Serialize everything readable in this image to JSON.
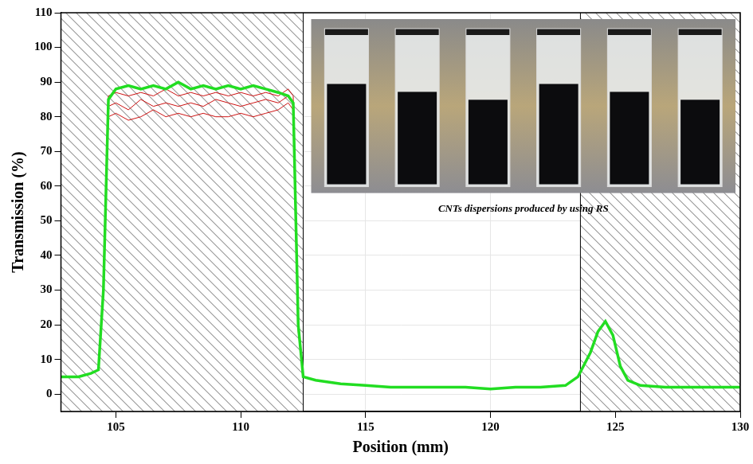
{
  "chart_data": {
    "type": "line",
    "x_label": "Position (mm)",
    "y_label": "Transmission (%)",
    "inset_caption": "CNTs dispersions produced by using RS",
    "x": [
      102.8,
      103.5,
      104.0,
      104.3,
      104.5,
      104.7,
      105,
      105.5,
      106,
      106.5,
      107,
      107.5,
      108,
      108.5,
      109,
      109.5,
      110,
      110.5,
      111,
      111.5,
      111.9,
      112.1,
      112.3,
      112.5,
      113,
      114,
      115,
      116,
      117,
      118,
      119,
      120,
      121,
      122,
      123,
      123.5,
      124,
      124.3,
      124.6,
      124.9,
      125.2,
      125.5,
      126,
      127,
      128,
      129,
      130
    ],
    "series": [
      {
        "color": "#22dd22",
        "values": [
          5,
          5,
          6,
          7,
          30,
          85,
          88,
          89,
          88,
          89,
          88,
          90,
          88,
          89,
          88,
          89,
          88,
          89,
          88,
          87,
          86,
          84,
          20,
          5,
          4,
          3,
          2.5,
          2,
          2,
          2,
          2,
          1.5,
          2,
          2,
          2.5,
          5,
          12,
          18,
          21,
          17,
          8,
          4,
          2.5,
          2,
          2,
          2,
          2
        ]
      },
      {
        "color": "#cc1111",
        "values": [
          5,
          5,
          6,
          7,
          30,
          80,
          81,
          79,
          80,
          82,
          80,
          81,
          80,
          81,
          80,
          80,
          81,
          80,
          81,
          82,
          84,
          82,
          18,
          5,
          4,
          3,
          2.5,
          2,
          2,
          2,
          2,
          1.5,
          2,
          2,
          2.5,
          5,
          12,
          18,
          21,
          17,
          8,
          4,
          2.5,
          2,
          2,
          2,
          2
        ]
      },
      {
        "color": "#cc1111",
        "values": [
          5,
          5,
          6,
          7,
          30,
          83,
          84,
          82,
          85,
          83,
          84,
          83,
          84,
          83,
          85,
          84,
          83,
          84,
          85,
          84,
          86,
          84,
          19,
          5,
          4,
          3,
          2.5,
          2,
          2,
          2,
          2,
          1.5,
          2,
          2,
          2.5,
          5,
          12,
          18,
          21,
          17,
          8,
          4,
          2.5,
          2,
          2,
          2,
          2
        ]
      },
      {
        "color": "#cc1111",
        "values": [
          5,
          5,
          6,
          7,
          30,
          86,
          87,
          86,
          87,
          86,
          88,
          86,
          87,
          86,
          87,
          86,
          87,
          86,
          87,
          86,
          88,
          86,
          20,
          5,
          4,
          3,
          2.5,
          2,
          2,
          2,
          2,
          1.5,
          2,
          2,
          2.5,
          5,
          12,
          18,
          21,
          17,
          8,
          4,
          2.5,
          2,
          2,
          2,
          2
        ]
      }
    ],
    "xlim": [
      102.8,
      130
    ],
    "xticks": [
      105,
      110,
      115,
      120,
      125,
      130
    ],
    "ylim": [
      -5,
      110
    ],
    "yticks": [
      0,
      10,
      20,
      30,
      40,
      50,
      60,
      70,
      80,
      90,
      100,
      110
    ],
    "grid": true,
    "shaded_ranges": [
      [
        102.8,
        112.5
      ],
      [
        123.6,
        130
      ]
    ]
  }
}
